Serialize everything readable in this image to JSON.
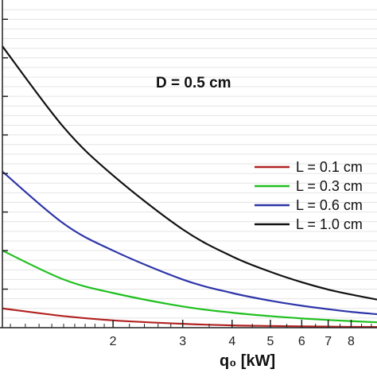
{
  "chart_data": {
    "type": "line",
    "title": "",
    "annotation": "D = 0.5 cm",
    "xlabel": "q₀ [kW]",
    "ylabel": "",
    "x_scale": "log",
    "xlim": [
      1.05,
      9.3
    ],
    "ylim": [
      0,
      8.5
    ],
    "x_ticks": [
      2,
      3,
      4,
      5,
      6,
      7,
      8
    ],
    "x_tick_labels": [
      "2",
      "3",
      "4",
      "5",
      "6",
      "7",
      "8"
    ],
    "grid": {
      "horizontal": true,
      "vertical": false
    },
    "legend_position": "right",
    "series": [
      {
        "name": "L = 0.1 cm",
        "color": "#b22222",
        "x": [
          1.05,
          1.5,
          2,
          3,
          4,
          5,
          6,
          7,
          8,
          9.3
        ],
        "y": [
          0.5,
          0.3,
          0.19,
          0.1,
          0.06,
          0.045,
          0.035,
          0.028,
          0.022,
          0.018
        ]
      },
      {
        "name": "L = 0.3 cm",
        "color": "#1fc01f",
        "x": [
          1.05,
          1.5,
          2,
          3,
          4,
          5,
          6,
          7,
          8,
          9.3
        ],
        "y": [
          2.0,
          1.25,
          0.9,
          0.55,
          0.39,
          0.3,
          0.24,
          0.2,
          0.17,
          0.14
        ]
      },
      {
        "name": "L = 0.6 cm",
        "color": "#2e35a8",
        "x": [
          1.05,
          1.5,
          2,
          3,
          4,
          5,
          6,
          7,
          8,
          9.3
        ],
        "y": [
          4.05,
          2.7,
          2.0,
          1.25,
          0.9,
          0.7,
          0.57,
          0.48,
          0.41,
          0.35
        ]
      },
      {
        "name": "L = 1.0 cm",
        "color": "#111111",
        "x": [
          1.05,
          1.5,
          2,
          3,
          4,
          5,
          6,
          7,
          8,
          9.3
        ],
        "y": [
          7.3,
          5.2,
          3.95,
          2.55,
          1.85,
          1.45,
          1.18,
          0.99,
          0.86,
          0.73
        ]
      }
    ]
  }
}
